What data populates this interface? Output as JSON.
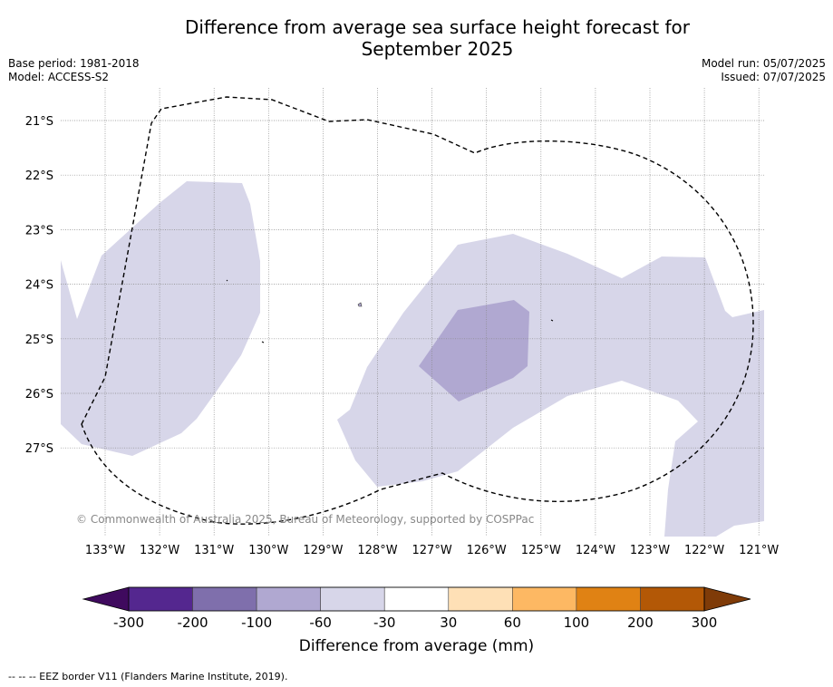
{
  "title_line1": "Difference from average sea surface height forecast for",
  "title_line2": "September 2025",
  "base_period": "Base period: 1981-2018",
  "model": "Model: ACCESS-S2",
  "model_run": "Model run: 05/07/2025",
  "issued": "Issued: 07/07/2025",
  "copyright": "© Commonwealth of Australia 2025, Bureau of Meteorology, supported by COSPPac",
  "footnote": "--  --  -- EEZ border V11 (Flanders Marine Institute, 2019).",
  "map": {
    "lon_labels": [
      "133°W",
      "132°W",
      "131°W",
      "130°W",
      "129°W",
      "128°W",
      "127°W",
      "126°W",
      "125°W",
      "124°W",
      "123°W",
      "122°W",
      "121°W"
    ],
    "lat_labels": [
      "21°S",
      "22°S",
      "23°S",
      "24°S",
      "25°S",
      "26°S",
      "27°S"
    ],
    "eez_border_style": "dashed"
  },
  "colorbar": {
    "title": "Difference from average (mm)",
    "tick_labels": [
      "-300",
      "-200",
      "-100",
      "-60",
      "-30",
      "30",
      "60",
      "100",
      "200",
      "300"
    ],
    "colors": [
      "#3f0a5e",
      "#54278f",
      "#7f6fac",
      "#b0a8d1",
      "#d7d6e9",
      "#ffffff",
      "#fee0b6",
      "#fdb863",
      "#e08214",
      "#b35806",
      "#7f3b08"
    ]
  },
  "shading_colors": {
    "band_minus_60_to_minus_30": "#d7d6e9",
    "band_minus_100_to_minus_60": "#b0a8d1"
  }
}
